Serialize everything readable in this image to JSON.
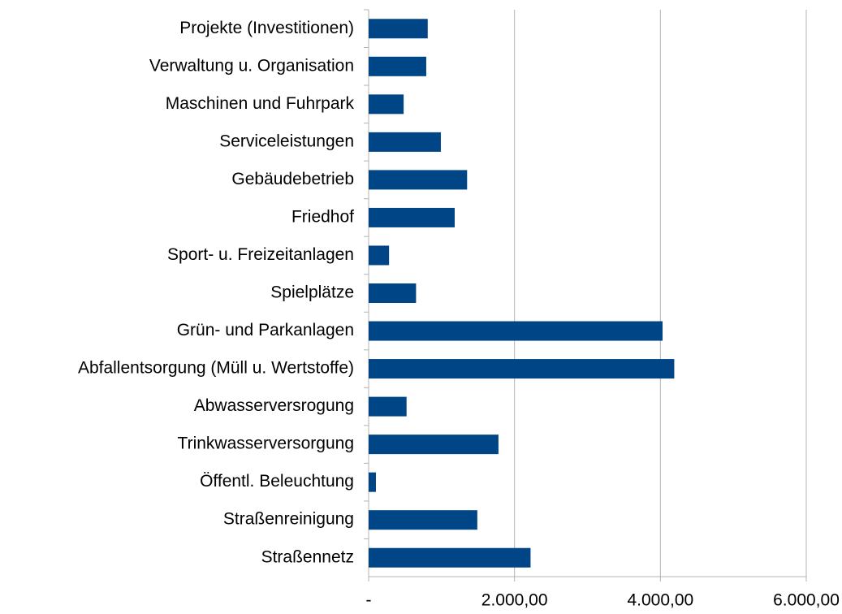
{
  "chart_data": {
    "type": "bar",
    "orientation": "horizontal",
    "categories": [
      "Projekte (Investitionen)",
      "Verwaltung u. Organisation",
      "Maschinen und Fuhrpark",
      "Serviceleistungen",
      "Gebäudebetrieb",
      "Friedhof",
      "Sport- u. Freizeitanlagen",
      "Spielplätze",
      "Grün- und Parkanlagen",
      "Abfallentsorgung (Müll u. Wertstoffe)",
      "Abwasserversrogung",
      "Trinkwasserversorgung",
      "Öffentl. Beleuchtung",
      "Straßenreinigung",
      "Straßennetz"
    ],
    "values": [
      810,
      790,
      480,
      990,
      1350,
      1180,
      280,
      650,
      4030,
      4190,
      520,
      1780,
      100,
      1490,
      2220
    ],
    "color": "#004586",
    "xlim": [
      0,
      6000
    ],
    "xticks": [
      {
        "value": 0,
        "label": "-"
      },
      {
        "value": 2000,
        "label": "2.000,00"
      },
      {
        "value": 4000,
        "label": "4.000,00"
      },
      {
        "value": 6000,
        "label": "6.000,00"
      }
    ],
    "grid": true
  }
}
